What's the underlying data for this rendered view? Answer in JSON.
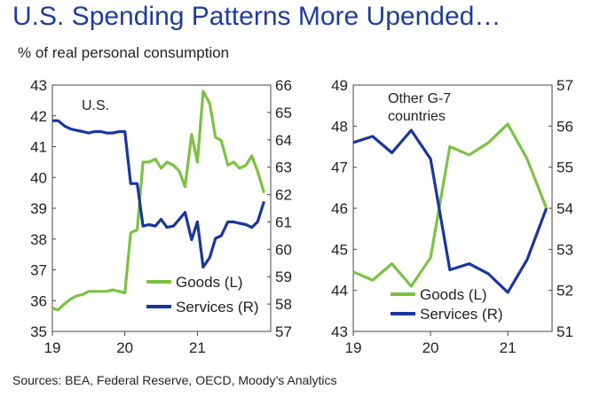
{
  "title": "U.S. Spending Patterns More Upended…",
  "subtitle": "% of real personal consumption",
  "source": "Sources: BEA, Federal Reserve, OECD, Moody’s Analytics",
  "colors": {
    "goods": "#7cc242",
    "services": "#1a35a0"
  },
  "chart_data": [
    {
      "type": "line",
      "panel_label": "U.S.",
      "x_ticks": [
        "19",
        "20",
        "21"
      ],
      "x_range": [
        2019.0,
        2021.95
      ],
      "y_left": {
        "min": 35,
        "max": 43,
        "ticks": [
          "35",
          "36",
          "37",
          "38",
          "39",
          "40",
          "41",
          "42",
          "43"
        ]
      },
      "y_right": {
        "min": 57,
        "max": 66,
        "ticks": [
          "57",
          "58",
          "59",
          "60",
          "61",
          "62",
          "63",
          "64",
          "65",
          "66"
        ]
      },
      "legend": {
        "position": "bottom-right"
      },
      "series": [
        {
          "name": "Goods (L)",
          "axis": "left",
          "color": "#7cc242",
          "x": [
            2019.0,
            2019.08,
            2019.17,
            2019.25,
            2019.33,
            2019.42,
            2019.5,
            2019.58,
            2019.67,
            2019.75,
            2019.83,
            2019.92,
            2020.0,
            2020.08,
            2020.17,
            2020.25,
            2020.33,
            2020.42,
            2020.5,
            2020.58,
            2020.67,
            2020.75,
            2020.83,
            2020.92,
            2021.0,
            2021.08,
            2021.17,
            2021.25,
            2021.33,
            2021.42,
            2021.5,
            2021.58,
            2021.67,
            2021.75,
            2021.83,
            2021.92
          ],
          "y": [
            35.75,
            35.7,
            35.9,
            36.05,
            36.15,
            36.2,
            36.3,
            36.3,
            36.3,
            36.3,
            36.35,
            36.3,
            36.25,
            38.2,
            38.3,
            40.5,
            40.5,
            40.6,
            40.3,
            40.5,
            40.4,
            40.2,
            39.7,
            41.4,
            40.5,
            42.8,
            42.4,
            41.3,
            41.2,
            40.4,
            40.5,
            40.3,
            40.4,
            40.7,
            40.2,
            39.5
          ]
        },
        {
          "name": "Services (R)",
          "axis": "right",
          "color": "#1a35a0",
          "x": [
            2019.0,
            2019.08,
            2019.17,
            2019.25,
            2019.33,
            2019.42,
            2019.5,
            2019.58,
            2019.67,
            2019.75,
            2019.83,
            2019.92,
            2020.0,
            2020.08,
            2020.17,
            2020.25,
            2020.33,
            2020.42,
            2020.5,
            2020.58,
            2020.67,
            2020.75,
            2020.83,
            2020.92,
            2021.0,
            2021.08,
            2021.17,
            2021.25,
            2021.33,
            2021.42,
            2021.5,
            2021.58,
            2021.67,
            2021.75,
            2021.83,
            2021.92
          ],
          "y": [
            64.7,
            64.7,
            64.5,
            64.4,
            64.35,
            64.3,
            64.25,
            64.3,
            64.3,
            64.25,
            64.25,
            64.3,
            64.3,
            62.4,
            62.4,
            60.85,
            60.9,
            60.85,
            61.1,
            60.8,
            60.85,
            61.1,
            61.35,
            60.35,
            61.0,
            59.35,
            59.7,
            60.4,
            60.5,
            61.0,
            61.0,
            60.95,
            60.9,
            60.8,
            61.0,
            61.75
          ]
        }
      ]
    },
    {
      "type": "line",
      "panel_label": "Other G-7\ncountries",
      "panel_label_lines": [
        "Other G-7",
        "countries"
      ],
      "x_ticks": [
        "19",
        "20",
        "21"
      ],
      "x_range": [
        2019.0,
        2021.55
      ],
      "y_left": {
        "min": 43,
        "max": 49,
        "ticks": [
          "43",
          "44",
          "45",
          "46",
          "47",
          "48",
          "49"
        ]
      },
      "y_right": {
        "min": 51,
        "max": 57,
        "ticks": [
          "51",
          "52",
          "53",
          "54",
          "55",
          "56",
          "57"
        ]
      },
      "legend": {
        "position": "bottom-right"
      },
      "series": [
        {
          "name": "Goods (L)",
          "axis": "left",
          "color": "#7cc242",
          "x": [
            2019.0,
            2019.25,
            2019.5,
            2019.75,
            2020.0,
            2020.25,
            2020.5,
            2020.75,
            2021.0,
            2021.25,
            2021.5
          ],
          "y": [
            44.45,
            44.25,
            44.65,
            44.1,
            44.8,
            47.5,
            47.3,
            47.6,
            48.05,
            47.2,
            46.0
          ]
        },
        {
          "name": "Services (R)",
          "axis": "right",
          "color": "#1a35a0",
          "x": [
            2019.0,
            2019.25,
            2019.5,
            2019.75,
            2020.0,
            2020.25,
            2020.5,
            2020.75,
            2021.0,
            2021.25,
            2021.5
          ],
          "y": [
            55.6,
            55.75,
            55.35,
            55.9,
            55.2,
            52.5,
            52.65,
            52.4,
            51.95,
            52.75,
            54.0
          ]
        }
      ]
    }
  ]
}
